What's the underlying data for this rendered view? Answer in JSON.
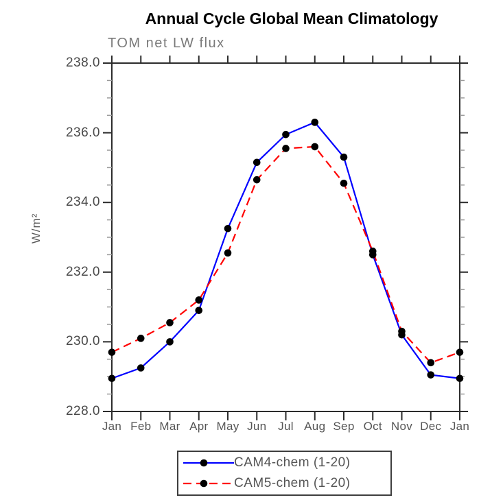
{
  "title": "Annual Cycle Global Mean Climatology",
  "chart_data": {
    "type": "line",
    "title": "Annual Cycle Global Mean Climatology",
    "subtitle": "TOM net LW flux",
    "ylabel": "W/m²",
    "xlabel": "",
    "categories": [
      "Jan",
      "Feb",
      "Mar",
      "Apr",
      "May",
      "Jun",
      "Jul",
      "Aug",
      "Sep",
      "Oct",
      "Nov",
      "Dec",
      "Jan"
    ],
    "ylim": [
      228.0,
      238.0
    ],
    "ytick_step": 2.0,
    "yminor_step": 0.5,
    "ytick_labels": [
      "228.0",
      "230.0",
      "232.0",
      "234.0",
      "236.0",
      "238.0"
    ],
    "grid": false,
    "legend_position": "bottom-center",
    "axis_color": "#2b2b2b",
    "minor_tick_color": "#999999",
    "marker_color": "#000000",
    "series": [
      {
        "name": "CAM4-chem",
        "legend": "CAM4-chem (1-20)",
        "color": "#0000ff",
        "style": "solid",
        "marker": "filled-circle",
        "values": [
          228.95,
          229.25,
          230.0,
          230.9,
          233.25,
          235.15,
          235.95,
          236.3,
          235.3,
          232.5,
          230.2,
          229.05,
          228.95
        ]
      },
      {
        "name": "CAM5-chem",
        "legend": "CAM5-chem (1-20)",
        "color": "#ff0000",
        "style": "dashed",
        "marker": "filled-circle",
        "values": [
          229.7,
          230.1,
          230.55,
          231.2,
          232.55,
          234.65,
          235.55,
          235.6,
          234.55,
          232.6,
          230.3,
          229.4,
          229.7
        ]
      }
    ]
  }
}
